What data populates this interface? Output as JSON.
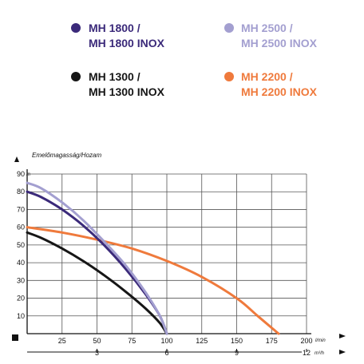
{
  "chart_data": {
    "type": "line",
    "ylabel": "Emelőmagasság/Hozam",
    "y_unit": "m",
    "x_unit_lmin": "l/min",
    "x_unit_m3h": "m³/h",
    "xlim": [
      0,
      200
    ],
    "ylim": [
      0,
      90
    ],
    "x_ticks": [
      "25",
      "50",
      "75",
      "100",
      "125",
      "150",
      "175",
      "200"
    ],
    "y_ticks": [
      "10",
      "20",
      "30",
      "40",
      "50",
      "60",
      "70",
      "80",
      "90"
    ],
    "x2_ticks": [
      "3",
      "6",
      "9",
      "12"
    ],
    "x2_tick_lmin": [
      50,
      100,
      150,
      200
    ],
    "grid": true,
    "legend_position": "top",
    "series": [
      {
        "name": "MH 1800 / MH 1800 INOX",
        "color": "#3b2a7a",
        "x": [
          0,
          10,
          25,
          40,
          55,
          70,
          85,
          95,
          100
        ],
        "y": [
          80,
          77,
          70,
          61,
          50,
          37,
          22,
          10,
          0
        ]
      },
      {
        "name": "MH 2500 / MH 2500 INOX",
        "color": "#a39fd0",
        "x": [
          0,
          10,
          25,
          40,
          55,
          70,
          85,
          95,
          100
        ],
        "y": [
          85,
          82,
          74,
          64,
          52,
          39,
          23,
          10,
          0
        ]
      },
      {
        "name": "MH 1300 / MH 1300 INOX",
        "color": "#161616",
        "x": [
          0,
          10,
          25,
          40,
          55,
          70,
          85,
          95,
          100
        ],
        "y": [
          57,
          54,
          48,
          41,
          33,
          24,
          14,
          6,
          0
        ]
      },
      {
        "name": "MH 2200 / MH 2200 INOX",
        "color": "#ef7a3c",
        "x": [
          0,
          25,
          50,
          75,
          100,
          125,
          150,
          165,
          180
        ],
        "y": [
          60,
          57,
          53,
          48,
          41,
          32,
          20,
          10,
          0
        ]
      }
    ]
  },
  "legend": [
    {
      "line1": "MH 1800 /",
      "line2": "MH 1800 INOX",
      "color": "#3b2a7a"
    },
    {
      "line1": "MH 2500 /",
      "line2": "MH 2500 INOX",
      "color": "#a39fd0"
    },
    {
      "line1": "MH 1300 /",
      "line2": "MH 1300 INOX",
      "color": "#161616"
    },
    {
      "line1": "MH 2200 /",
      "line2": "MH 2200 INOX",
      "color": "#ef7a3c"
    }
  ]
}
